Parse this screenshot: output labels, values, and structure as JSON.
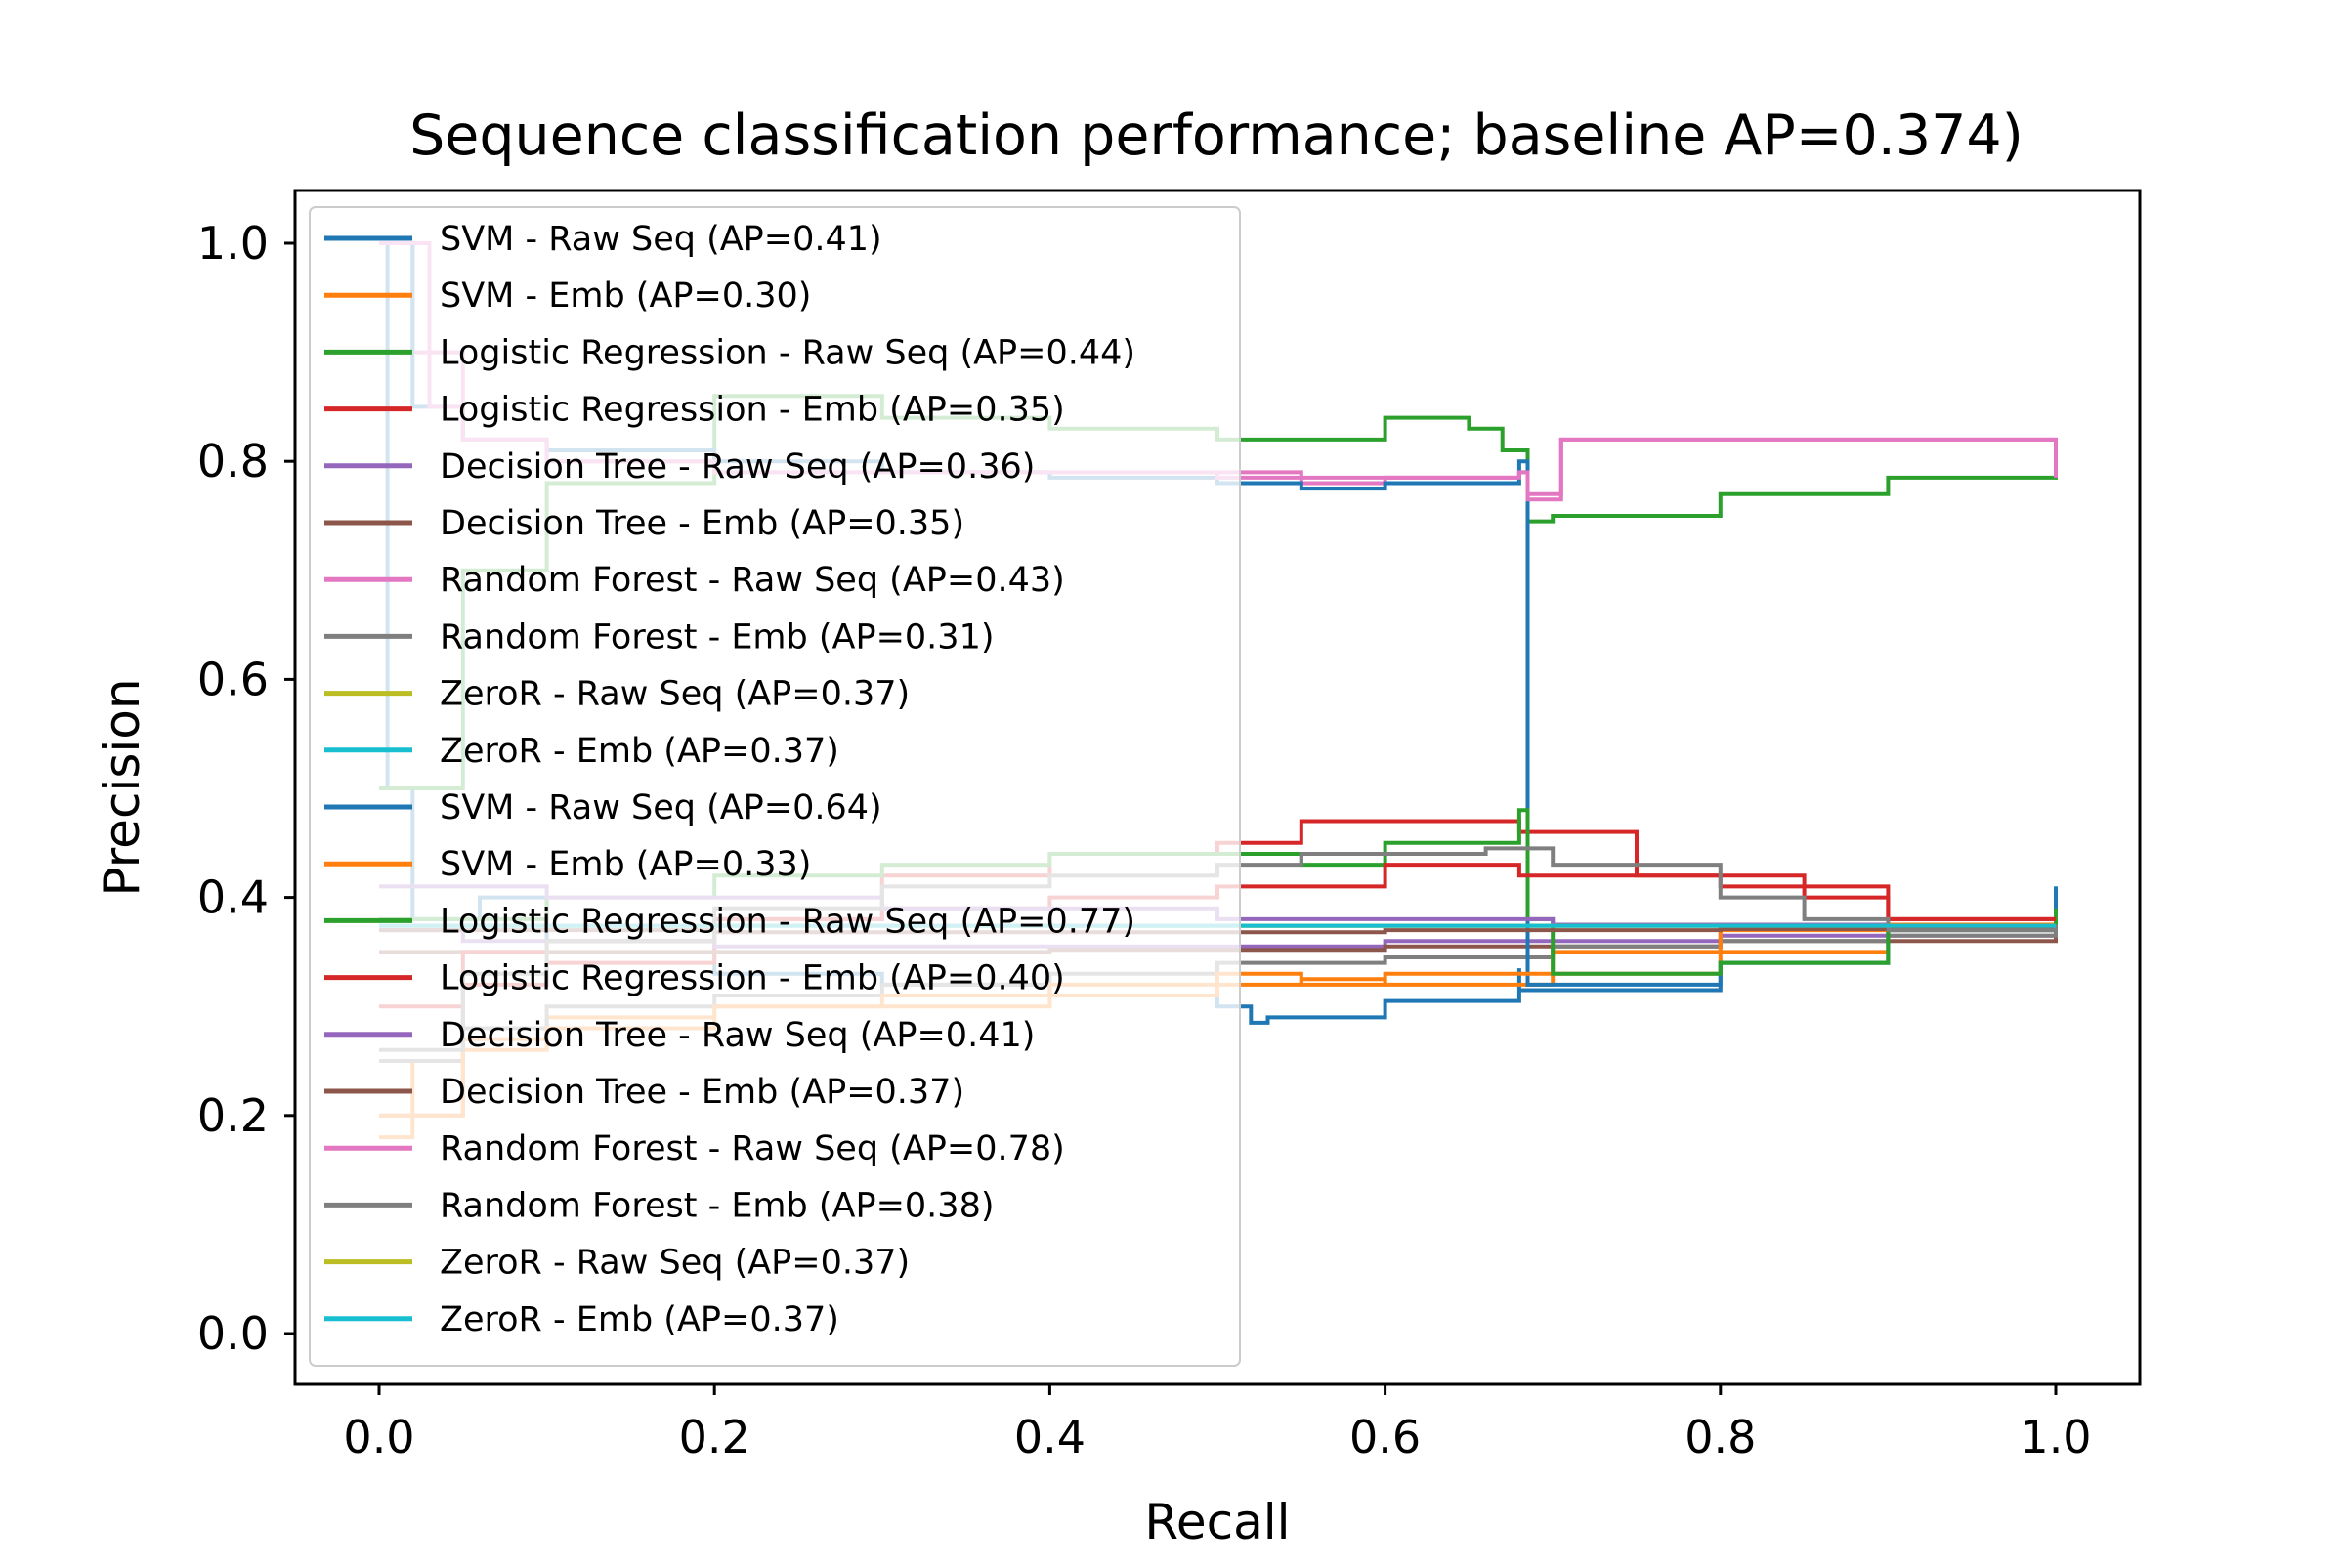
{
  "chart_data": {
    "type": "line",
    "title": "Sequence classification performance; baseline AP=0.374)",
    "xlabel": "Recall",
    "ylabel": "Precision",
    "xlim": [
      -0.05,
      1.05
    ],
    "ylim": [
      -0.05,
      1.05
    ],
    "xticks": [
      "0.0",
      "0.2",
      "0.4",
      "0.6",
      "0.8",
      "1.0"
    ],
    "yticks": [
      "0.0",
      "0.2",
      "0.4",
      "0.6",
      "0.8",
      "1.0"
    ],
    "grid": false,
    "legend_position": "upper-left",
    "series": [
      {
        "name": "SVM - Raw Seq (AP=0.41)",
        "color": "#1f77b4",
        "points": [
          [
            0,
            1.0
          ],
          [
            0.005,
            0.5
          ],
          [
            0.02,
            0.38
          ],
          [
            0.06,
            0.4
          ],
          [
            0.1,
            0.36
          ],
          [
            0.2,
            0.33
          ],
          [
            0.3,
            0.32
          ],
          [
            0.4,
            0.31
          ],
          [
            0.5,
            0.3
          ],
          [
            0.52,
            0.285
          ],
          [
            0.53,
            0.29
          ],
          [
            0.6,
            0.305
          ],
          [
            0.68,
            0.335
          ],
          [
            0.68,
            0.315
          ],
          [
            0.8,
            0.34
          ],
          [
            0.9,
            0.375
          ],
          [
            1.0,
            0.41
          ]
        ]
      },
      {
        "name": "SVM - Emb (AP=0.30)",
        "color": "#ff7f0e",
        "points": [
          [
            0,
            0.18
          ],
          [
            0.02,
            0.25
          ],
          [
            0.05,
            0.27
          ],
          [
            0.1,
            0.29
          ],
          [
            0.2,
            0.3
          ],
          [
            0.3,
            0.3
          ],
          [
            0.4,
            0.31
          ],
          [
            0.5,
            0.32
          ],
          [
            0.55,
            0.325
          ],
          [
            0.6,
            0.32
          ],
          [
            0.7,
            0.33
          ],
          [
            0.8,
            0.35
          ],
          [
            0.9,
            0.37
          ],
          [
            1.0,
            0.375
          ]
        ]
      },
      {
        "name": "Logistic Regression - Raw Seq (AP=0.44)",
        "color": "#2ca02c",
        "points": [
          [
            0,
            0.5
          ],
          [
            0.05,
            0.7
          ],
          [
            0.1,
            0.78
          ],
          [
            0.2,
            0.86
          ],
          [
            0.3,
            0.84
          ],
          [
            0.4,
            0.83
          ],
          [
            0.5,
            0.82
          ],
          [
            0.6,
            0.84
          ],
          [
            0.65,
            0.83
          ],
          [
            0.67,
            0.81
          ],
          [
            0.685,
            0.8
          ],
          [
            0.685,
            0.745
          ],
          [
            0.7,
            0.75
          ],
          [
            0.8,
            0.77
          ],
          [
            0.9,
            0.785
          ],
          [
            1.0,
            0.79
          ]
        ]
      },
      {
        "name": "Logistic Regression - Emb (AP=0.35)",
        "color": "#d62728",
        "points": [
          [
            0,
            0.2
          ],
          [
            0.05,
            0.32
          ],
          [
            0.1,
            0.34
          ],
          [
            0.2,
            0.38
          ],
          [
            0.3,
            0.42
          ],
          [
            0.4,
            0.44
          ],
          [
            0.5,
            0.45
          ],
          [
            0.55,
            0.47
          ],
          [
            0.6,
            0.47
          ],
          [
            0.68,
            0.46
          ],
          [
            0.75,
            0.42
          ],
          [
            0.8,
            0.42
          ],
          [
            0.85,
            0.41
          ],
          [
            0.9,
            0.38
          ],
          [
            1.0,
            0.38
          ]
        ]
      },
      {
        "name": "Decision Tree - Raw Seq (AP=0.36)",
        "color": "#9467bd",
        "points": [
          [
            0,
            0.37
          ],
          [
            0.05,
            0.36
          ],
          [
            0.2,
            0.355
          ],
          [
            0.4,
            0.355
          ],
          [
            0.6,
            0.36
          ],
          [
            0.8,
            0.365
          ],
          [
            1.0,
            0.37
          ]
        ]
      },
      {
        "name": "Decision Tree - Emb (AP=0.35)",
        "color": "#8c564b",
        "points": [
          [
            0,
            0.35
          ],
          [
            0.2,
            0.35
          ],
          [
            0.4,
            0.352
          ],
          [
            0.6,
            0.355
          ],
          [
            0.8,
            0.36
          ],
          [
            1.0,
            0.372
          ]
        ]
      },
      {
        "name": "Random Forest - Raw Seq (AP=0.43)",
        "color": "#e377c2",
        "points": [
          [
            0,
            1.0
          ],
          [
            0.02,
            0.9
          ],
          [
            0.05,
            0.82
          ],
          [
            0.1,
            0.8
          ],
          [
            0.2,
            0.79
          ],
          [
            0.3,
            0.79
          ],
          [
            0.4,
            0.79
          ],
          [
            0.5,
            0.79
          ],
          [
            0.55,
            0.78
          ],
          [
            0.6,
            0.785
          ],
          [
            0.68,
            0.79
          ],
          [
            0.685,
            0.77
          ],
          [
            0.705,
            0.77
          ],
          [
            0.705,
            0.82
          ],
          [
            0.8,
            0.82
          ],
          [
            0.9,
            0.82
          ],
          [
            0.98,
            0.82
          ],
          [
            1.0,
            0.79
          ]
        ]
      },
      {
        "name": "Random Forest - Emb (AP=0.31)",
        "color": "#7f7f7f",
        "points": [
          [
            0,
            0.25
          ],
          [
            0.05,
            0.28
          ],
          [
            0.1,
            0.3
          ],
          [
            0.2,
            0.31
          ],
          [
            0.3,
            0.32
          ],
          [
            0.4,
            0.33
          ],
          [
            0.5,
            0.34
          ],
          [
            0.6,
            0.345
          ],
          [
            0.7,
            0.355
          ],
          [
            0.8,
            0.36
          ],
          [
            0.9,
            0.365
          ],
          [
            1.0,
            0.372
          ]
        ]
      },
      {
        "name": "ZeroR - Raw Seq (AP=0.37)",
        "color": "#bcbd22",
        "points": [
          [
            0,
            0.374
          ],
          [
            1.0,
            0.374
          ]
        ]
      },
      {
        "name": "ZeroR - Emb (AP=0.37)",
        "color": "#17becf",
        "points": [
          [
            0,
            0.374
          ],
          [
            1.0,
            0.374
          ]
        ]
      },
      {
        "name": "SVM - Raw Seq (AP=0.64)",
        "color": "#1f77b4",
        "points": [
          [
            0,
            1.0
          ],
          [
            0.02,
            0.85
          ],
          [
            0.05,
            0.82
          ],
          [
            0.1,
            0.81
          ],
          [
            0.2,
            0.8
          ],
          [
            0.3,
            0.79
          ],
          [
            0.4,
            0.785
          ],
          [
            0.5,
            0.78
          ],
          [
            0.55,
            0.775
          ],
          [
            0.6,
            0.78
          ],
          [
            0.68,
            0.8
          ],
          [
            0.685,
            0.8
          ],
          [
            0.685,
            0.32
          ],
          [
            0.8,
            0.34
          ],
          [
            0.9,
            0.37
          ],
          [
            1.0,
            0.41
          ]
        ]
      },
      {
        "name": "SVM - Emb (AP=0.33)",
        "color": "#ff7f0e",
        "points": [
          [
            0,
            0.2
          ],
          [
            0.05,
            0.26
          ],
          [
            0.1,
            0.28
          ],
          [
            0.2,
            0.3
          ],
          [
            0.3,
            0.31
          ],
          [
            0.4,
            0.32
          ],
          [
            0.5,
            0.33
          ],
          [
            0.55,
            0.32
          ],
          [
            0.6,
            0.33
          ],
          [
            0.65,
            0.33
          ],
          [
            0.7,
            0.35
          ],
          [
            0.8,
            0.37
          ],
          [
            0.9,
            0.375
          ],
          [
            1.0,
            0.38
          ]
        ]
      },
      {
        "name": "Logistic Regression - Raw Seq (AP=0.77)",
        "color": "#2ca02c",
        "points": [
          [
            0,
            0.38
          ],
          [
            0.1,
            0.4
          ],
          [
            0.2,
            0.42
          ],
          [
            0.3,
            0.43
          ],
          [
            0.4,
            0.44
          ],
          [
            0.5,
            0.44
          ],
          [
            0.55,
            0.43
          ],
          [
            0.6,
            0.45
          ],
          [
            0.68,
            0.48
          ],
          [
            0.685,
            0.47
          ],
          [
            0.685,
            0.38
          ],
          [
            0.7,
            0.33
          ],
          [
            0.8,
            0.34
          ],
          [
            0.9,
            0.37
          ],
          [
            1.0,
            0.39
          ]
        ]
      },
      {
        "name": "Logistic Regression - Emb (AP=0.40)",
        "color": "#d62728",
        "points": [
          [
            0,
            0.3
          ],
          [
            0.05,
            0.35
          ],
          [
            0.1,
            0.36
          ],
          [
            0.2,
            0.38
          ],
          [
            0.3,
            0.39
          ],
          [
            0.4,
            0.4
          ],
          [
            0.5,
            0.41
          ],
          [
            0.55,
            0.41
          ],
          [
            0.6,
            0.43
          ],
          [
            0.68,
            0.42
          ],
          [
            0.7,
            0.42
          ],
          [
            0.8,
            0.41
          ],
          [
            0.85,
            0.4
          ],
          [
            0.9,
            0.38
          ],
          [
            1.0,
            0.38
          ]
        ]
      },
      {
        "name": "Decision Tree - Raw Seq (AP=0.41)",
        "color": "#9467bd",
        "points": [
          [
            0,
            0.41
          ],
          [
            0.1,
            0.4
          ],
          [
            0.3,
            0.39
          ],
          [
            0.5,
            0.38
          ],
          [
            0.7,
            0.375
          ],
          [
            0.9,
            0.372
          ],
          [
            1.0,
            0.372
          ]
        ]
      },
      {
        "name": "Decision Tree - Emb (AP=0.37)",
        "color": "#8c564b",
        "points": [
          [
            0,
            0.37
          ],
          [
            0.2,
            0.368
          ],
          [
            0.4,
            0.368
          ],
          [
            0.6,
            0.37
          ],
          [
            0.8,
            0.371
          ],
          [
            1.0,
            0.372
          ]
        ]
      },
      {
        "name": "Random Forest - Raw Seq (AP=0.78)",
        "color": "#e377c2",
        "points": [
          [
            0,
            1.0
          ],
          [
            0.03,
            0.85
          ],
          [
            0.05,
            0.82
          ],
          [
            0.1,
            0.8
          ],
          [
            0.2,
            0.79
          ],
          [
            0.3,
            0.79
          ],
          [
            0.4,
            0.79
          ],
          [
            0.5,
            0.785
          ],
          [
            0.55,
            0.785
          ],
          [
            0.6,
            0.785
          ],
          [
            0.68,
            0.79
          ],
          [
            0.685,
            0.765
          ],
          [
            0.705,
            0.765
          ],
          [
            0.705,
            0.82
          ],
          [
            0.98,
            0.82
          ],
          [
            1.0,
            0.785
          ]
        ]
      },
      {
        "name": "Random Forest - Emb (AP=0.38)",
        "color": "#7f7f7f",
        "points": [
          [
            0,
            0.26
          ],
          [
            0.05,
            0.33
          ],
          [
            0.1,
            0.36
          ],
          [
            0.2,
            0.39
          ],
          [
            0.3,
            0.41
          ],
          [
            0.4,
            0.42
          ],
          [
            0.5,
            0.43
          ],
          [
            0.55,
            0.44
          ],
          [
            0.6,
            0.44
          ],
          [
            0.66,
            0.445
          ],
          [
            0.7,
            0.43
          ],
          [
            0.8,
            0.4
          ],
          [
            0.85,
            0.38
          ],
          [
            0.9,
            0.37
          ],
          [
            1.0,
            0.375
          ]
        ]
      },
      {
        "name": "ZeroR - Raw Seq (AP=0.37)",
        "color": "#bcbd22",
        "points": [
          [
            0,
            0.374
          ],
          [
            1.0,
            0.374
          ]
        ]
      },
      {
        "name": "ZeroR - Emb (AP=0.37)",
        "color": "#17becf",
        "points": [
          [
            0,
            0.374
          ],
          [
            1.0,
            0.374
          ]
        ]
      }
    ]
  }
}
